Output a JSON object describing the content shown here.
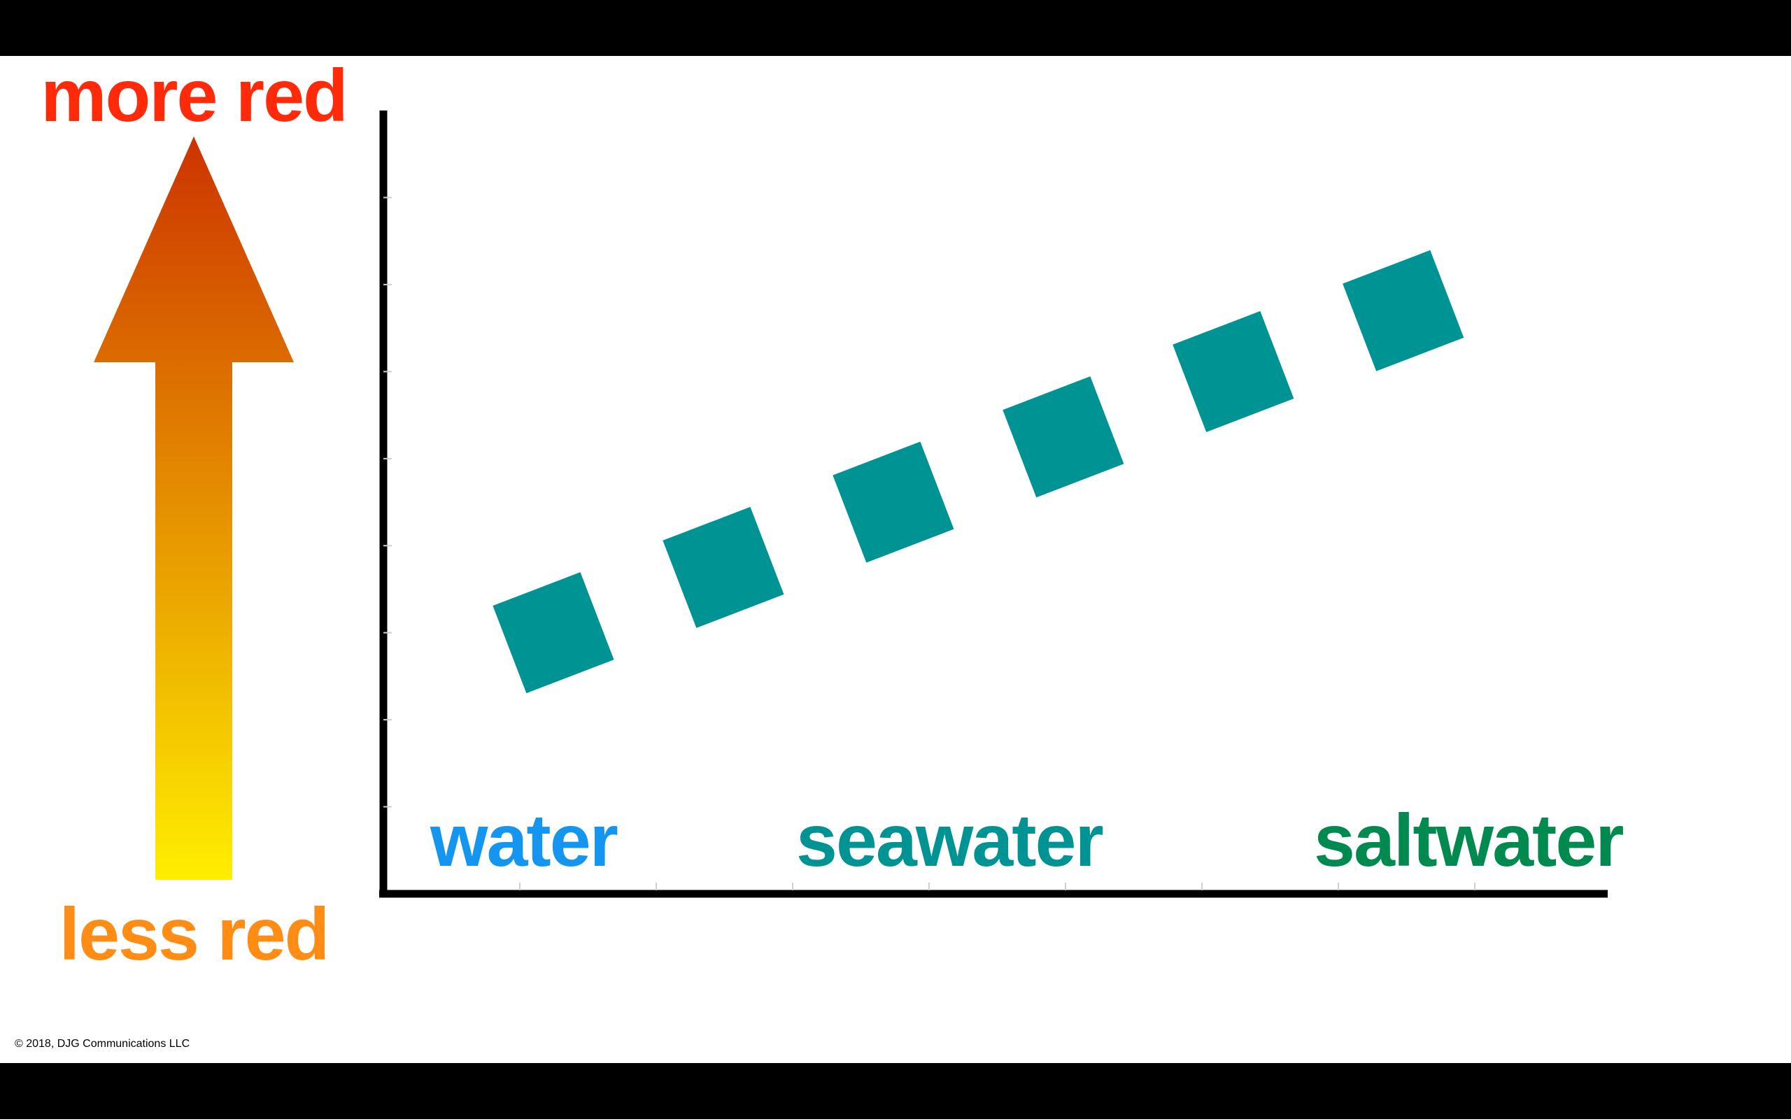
{
  "labels": {
    "top": "more red",
    "bottom": "less red",
    "copyright": "© 2018, DJG Communications LLC"
  },
  "colors": {
    "top_label": "#ff2a0a",
    "bottom_label": "#ff8c14",
    "arrow_top": "#cc3300",
    "arrow_bottom": "#ffee00",
    "marker": "#009393",
    "water": "#1496f0",
    "seawater": "#009393",
    "saltwater": "#008a50"
  },
  "chart_data": {
    "type": "scatter",
    "title": "",
    "xlabel": "",
    "ylabel": "",
    "y_direction": "up = more red",
    "categories": [
      {
        "label": "water",
        "color": "#1496f0"
      },
      {
        "label": "seawater",
        "color": "#009393"
      },
      {
        "label": "saltwater",
        "color": "#008a50"
      }
    ],
    "xlim": [
      0,
      9
    ],
    "ylim": [
      0,
      9
    ],
    "series": [
      {
        "marker": "rotated-square",
        "x": [
          1.3,
          2.6,
          3.9,
          5.2,
          6.5,
          7.8
        ],
        "y": [
          3.0,
          3.75,
          4.5,
          5.25,
          6.0,
          6.7
        ]
      }
    ],
    "grid": false
  }
}
